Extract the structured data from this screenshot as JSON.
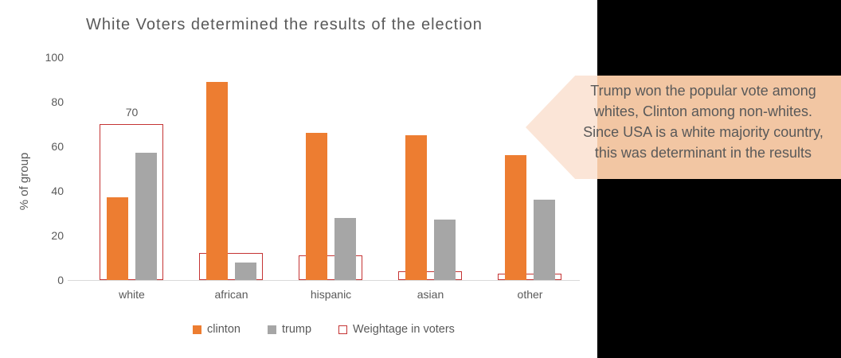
{
  "canvas": {
    "background": "#ffffff",
    "right_panel_color": "#000000"
  },
  "chart_data": {
    "type": "bar",
    "title": "White Voters determined the results of the election",
    "xlabel": "",
    "ylabel": "% of group",
    "categories": [
      "white",
      "african",
      "hispanic",
      "asian",
      "other"
    ],
    "series": [
      {
        "name": "clinton",
        "color": "#ED7D31",
        "style": "fill",
        "values": [
          37,
          89,
          66,
          65,
          56
        ]
      },
      {
        "name": "trump",
        "color": "#A6A6A6",
        "style": "fill",
        "values": [
          57,
          8,
          28,
          27,
          36
        ]
      },
      {
        "name": "Weightage in voters",
        "color": "#C53434",
        "style": "outline",
        "values": [
          70,
          12,
          11,
          4,
          3
        ]
      }
    ],
    "ylim": [
      0,
      100
    ],
    "yticks": [
      100,
      80,
      60,
      40,
      20,
      0
    ],
    "grid": false,
    "legend_position": "bottom",
    "axis_line_color": "#D9D9D9",
    "text_color": "#595959",
    "annotations": [
      {
        "category": "white",
        "series": "Weightage in voters",
        "text": "70"
      }
    ]
  },
  "callout": {
    "lines": [
      "Trump won the popular vote among",
      "whites, Clinton among non-whites.",
      "Since USA is a white majority country,",
      "this was determinant in the results"
    ],
    "fill_over_white": "#FBE5D7",
    "fill_over_black": "#F2C6A3",
    "text_color": "#595959",
    "shape": "left-arrow-pentagon"
  }
}
